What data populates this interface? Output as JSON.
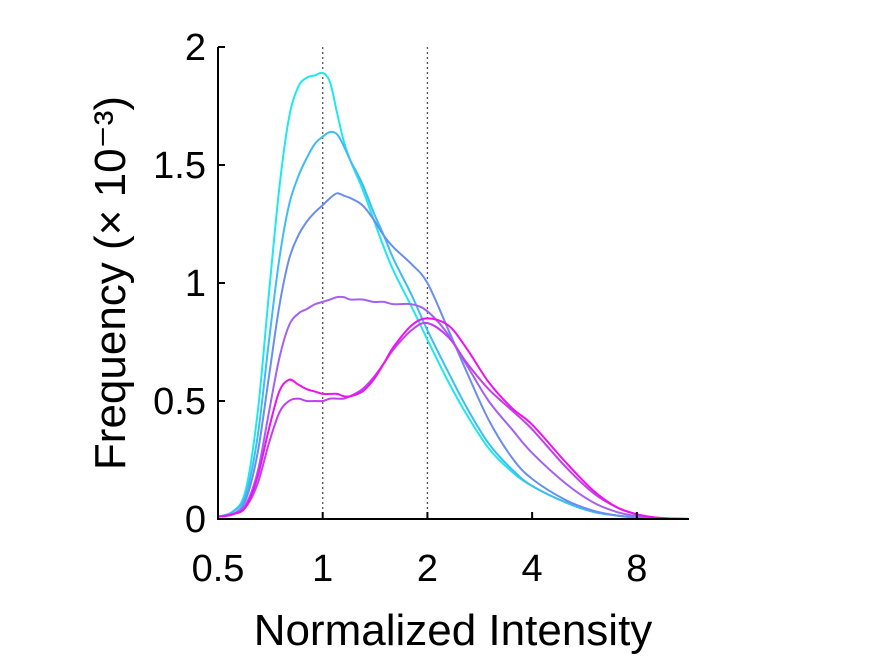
{
  "chart_data": {
    "type": "line",
    "title": "",
    "xlabel": "Normalized Intensity",
    "ylabel": "Frequency (× 10⁻³)",
    "x_scale": "log2",
    "xlim": [
      0.5,
      11.3
    ],
    "ylim": [
      0,
      2
    ],
    "x_ticks": [
      {
        "value": 0.5,
        "label": "0.5"
      },
      {
        "value": 1,
        "label": "1"
      },
      {
        "value": 2,
        "label": "2"
      },
      {
        "value": 4,
        "label": "4"
      },
      {
        "value": 8,
        "label": "8"
      }
    ],
    "y_ticks": [
      {
        "value": 0,
        "label": "0"
      },
      {
        "value": 0.5,
        "label": "0.5"
      },
      {
        "value": 1,
        "label": "1"
      },
      {
        "value": 1.5,
        "label": "1.5"
      },
      {
        "value": 2,
        "label": "2"
      }
    ],
    "reference_lines_x": [
      1,
      2
    ],
    "grid": false,
    "legend": "none",
    "series": [
      {
        "color": "#1de8ef",
        "x": [
          0.5,
          0.55,
          0.6,
          0.65,
          0.7,
          0.75,
          0.8,
          0.85,
          0.9,
          0.95,
          1.0,
          1.05,
          1.1,
          1.15,
          1.2,
          1.3,
          1.4,
          1.5,
          1.6,
          1.8,
          2.0,
          2.3,
          2.6,
          3.0,
          3.5,
          4.0,
          5.0,
          6.0,
          7.0,
          8.0,
          9.0,
          10.0,
          11.3
        ],
        "y": [
          0.01,
          0.03,
          0.12,
          0.45,
          0.95,
          1.4,
          1.7,
          1.83,
          1.87,
          1.88,
          1.89,
          1.85,
          1.72,
          1.6,
          1.52,
          1.4,
          1.27,
          1.15,
          1.05,
          0.9,
          0.76,
          0.58,
          0.44,
          0.3,
          0.2,
          0.14,
          0.07,
          0.03,
          0.015,
          0.006,
          0.002,
          0.001,
          0.0
        ]
      },
      {
        "color": "#3dbdf2",
        "x": [
          0.5,
          0.55,
          0.6,
          0.65,
          0.7,
          0.75,
          0.8,
          0.85,
          0.9,
          0.95,
          1.0,
          1.05,
          1.1,
          1.15,
          1.2,
          1.3,
          1.4,
          1.5,
          1.6,
          1.8,
          2.0,
          2.3,
          2.6,
          3.0,
          3.5,
          4.0,
          5.0,
          6.0,
          7.0,
          8.0,
          9.0,
          10.0,
          11.3
        ],
        "y": [
          0.01,
          0.03,
          0.1,
          0.35,
          0.75,
          1.1,
          1.33,
          1.45,
          1.53,
          1.59,
          1.62,
          1.64,
          1.63,
          1.58,
          1.52,
          1.42,
          1.3,
          1.2,
          1.1,
          0.95,
          0.8,
          0.62,
          0.47,
          0.32,
          0.21,
          0.14,
          0.07,
          0.03,
          0.015,
          0.006,
          0.002,
          0.001,
          0.0
        ]
      },
      {
        "color": "#6a8ef0",
        "x": [
          0.5,
          0.55,
          0.6,
          0.65,
          0.7,
          0.75,
          0.8,
          0.85,
          0.9,
          0.95,
          1.0,
          1.05,
          1.1,
          1.15,
          1.2,
          1.3,
          1.4,
          1.5,
          1.6,
          1.8,
          2.0,
          2.3,
          2.6,
          3.0,
          3.5,
          4.0,
          5.0,
          6.0,
          7.0,
          8.0,
          9.0,
          10.0,
          11.3
        ],
        "y": [
          0.01,
          0.02,
          0.08,
          0.28,
          0.6,
          0.9,
          1.1,
          1.2,
          1.26,
          1.3,
          1.33,
          1.36,
          1.38,
          1.37,
          1.36,
          1.33,
          1.27,
          1.2,
          1.15,
          1.08,
          1.0,
          0.8,
          0.62,
          0.42,
          0.26,
          0.17,
          0.08,
          0.035,
          0.015,
          0.006,
          0.002,
          0.001,
          0.0
        ]
      },
      {
        "color": "#a461f2",
        "x": [
          0.5,
          0.55,
          0.6,
          0.65,
          0.7,
          0.75,
          0.8,
          0.85,
          0.9,
          0.95,
          1.0,
          1.05,
          1.1,
          1.15,
          1.2,
          1.3,
          1.4,
          1.5,
          1.6,
          1.8,
          2.0,
          2.3,
          2.6,
          3.0,
          3.5,
          4.0,
          5.0,
          6.0,
          7.0,
          8.0,
          9.0,
          10.0,
          11.3
        ],
        "y": [
          0.01,
          0.02,
          0.06,
          0.2,
          0.45,
          0.68,
          0.82,
          0.87,
          0.89,
          0.91,
          0.92,
          0.93,
          0.94,
          0.94,
          0.93,
          0.93,
          0.92,
          0.92,
          0.91,
          0.91,
          0.88,
          0.78,
          0.65,
          0.5,
          0.38,
          0.28,
          0.15,
          0.07,
          0.03,
          0.012,
          0.004,
          0.001,
          0.0
        ]
      },
      {
        "color": "#c33ef0",
        "x": [
          0.5,
          0.55,
          0.6,
          0.65,
          0.7,
          0.75,
          0.8,
          0.85,
          0.9,
          0.95,
          1.0,
          1.05,
          1.1,
          1.15,
          1.2,
          1.3,
          1.4,
          1.5,
          1.6,
          1.8,
          2.0,
          2.3,
          2.6,
          3.0,
          3.5,
          4.0,
          5.0,
          6.0,
          7.0,
          8.0,
          9.0,
          10.0,
          11.3
        ],
        "y": [
          0.01,
          0.02,
          0.05,
          0.15,
          0.32,
          0.45,
          0.5,
          0.51,
          0.5,
          0.5,
          0.5,
          0.51,
          0.51,
          0.51,
          0.52,
          0.55,
          0.6,
          0.66,
          0.72,
          0.8,
          0.83,
          0.77,
          0.66,
          0.55,
          0.46,
          0.38,
          0.22,
          0.11,
          0.05,
          0.02,
          0.007,
          0.002,
          0.0
        ]
      },
      {
        "color": "#ee12ee",
        "x": [
          0.5,
          0.55,
          0.6,
          0.65,
          0.7,
          0.75,
          0.8,
          0.85,
          0.9,
          0.95,
          1.0,
          1.05,
          1.1,
          1.15,
          1.2,
          1.3,
          1.4,
          1.5,
          1.6,
          1.8,
          2.0,
          2.3,
          2.6,
          3.0,
          3.5,
          4.0,
          5.0,
          6.0,
          7.0,
          8.0,
          9.0,
          10.0,
          11.3
        ],
        "y": [
          0.01,
          0.02,
          0.05,
          0.18,
          0.38,
          0.54,
          0.59,
          0.57,
          0.55,
          0.54,
          0.53,
          0.53,
          0.53,
          0.52,
          0.52,
          0.54,
          0.59,
          0.66,
          0.73,
          0.82,
          0.85,
          0.82,
          0.72,
          0.58,
          0.47,
          0.4,
          0.24,
          0.12,
          0.05,
          0.02,
          0.007,
          0.002,
          0.0
        ]
      }
    ]
  }
}
